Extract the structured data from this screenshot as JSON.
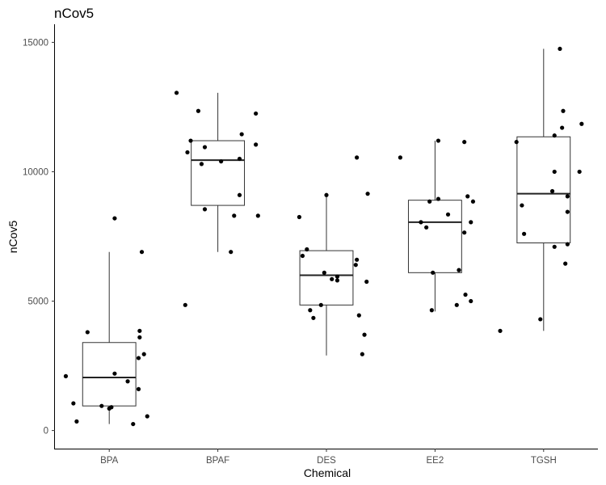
{
  "chart_data": {
    "type": "boxplot",
    "title": "nCov5",
    "xlabel": "Chemical",
    "ylabel": "nCov5",
    "ylim": [
      -700,
      15700
    ],
    "yticks": [
      0,
      5000,
      10000,
      15000
    ],
    "ytick_labels": [
      "0",
      "5000",
      "10000",
      "15000"
    ],
    "grid": false,
    "categories": [
      "BPA",
      "BPAF",
      "DES",
      "EE2",
      "TGSH"
    ],
    "boxes": [
      {
        "category": "BPA",
        "whisker_low": 250,
        "q1": 950,
        "median": 2050,
        "q3": 3400,
        "whisker_high": 6900
      },
      {
        "category": "BPAF",
        "whisker_low": 6900,
        "q1": 8700,
        "median": 10450,
        "q3": 11200,
        "whisker_high": 13050
      },
      {
        "category": "DES",
        "whisker_low": 2900,
        "q1": 4850,
        "median": 6000,
        "q3": 6950,
        "whisker_high": 9100
      },
      {
        "category": "EE2",
        "whisker_low": 4600,
        "q1": 6100,
        "median": 8050,
        "q3": 8900,
        "whisker_high": 11200
      },
      {
        "category": "TGSH",
        "whisker_low": 3850,
        "q1": 7250,
        "median": 9150,
        "q3": 11350,
        "whisker_high": 14750
      }
    ],
    "points": [
      {
        "category": "BPA",
        "jitter": 0.05,
        "value": 8200
      },
      {
        "category": "BPA",
        "jitter": 0.3,
        "value": 6900
      },
      {
        "category": "BPA",
        "jitter": -0.2,
        "value": 3800
      },
      {
        "category": "BPA",
        "jitter": 0.28,
        "value": 3850
      },
      {
        "category": "BPA",
        "jitter": 0.28,
        "value": 3600
      },
      {
        "category": "BPA",
        "jitter": 0.32,
        "value": 2950
      },
      {
        "category": "BPA",
        "jitter": 0.27,
        "value": 2800
      },
      {
        "category": "BPA",
        "jitter": -0.4,
        "value": 2100
      },
      {
        "category": "BPA",
        "jitter": 0.05,
        "value": 2200
      },
      {
        "category": "BPA",
        "jitter": 0.17,
        "value": 1900
      },
      {
        "category": "BPA",
        "jitter": 0.27,
        "value": 1600
      },
      {
        "category": "BPA",
        "jitter": -0.33,
        "value": 1050
      },
      {
        "category": "BPA",
        "jitter": -0.07,
        "value": 950
      },
      {
        "category": "BPA",
        "jitter": 0.02,
        "value": 900
      },
      {
        "category": "BPA",
        "jitter": 0.0,
        "value": 850
      },
      {
        "category": "BPA",
        "jitter": 0.35,
        "value": 550
      },
      {
        "category": "BPA",
        "jitter": -0.3,
        "value": 350
      },
      {
        "category": "BPA",
        "jitter": 0.22,
        "value": 250
      },
      {
        "category": "BPAF",
        "jitter": -0.38,
        "value": 13050
      },
      {
        "category": "BPAF",
        "jitter": -0.18,
        "value": 12350
      },
      {
        "category": "BPAF",
        "jitter": 0.35,
        "value": 12250
      },
      {
        "category": "BPAF",
        "jitter": 0.22,
        "value": 11450
      },
      {
        "category": "BPAF",
        "jitter": -0.25,
        "value": 11200
      },
      {
        "category": "BPAF",
        "jitter": 0.35,
        "value": 11050
      },
      {
        "category": "BPAF",
        "jitter": -0.12,
        "value": 10950
      },
      {
        "category": "BPAF",
        "jitter": -0.28,
        "value": 10750
      },
      {
        "category": "BPAF",
        "jitter": 0.2,
        "value": 10500
      },
      {
        "category": "BPAF",
        "jitter": 0.03,
        "value": 10400
      },
      {
        "category": "BPAF",
        "jitter": -0.15,
        "value": 10300
      },
      {
        "category": "BPAF",
        "jitter": 0.2,
        "value": 9100
      },
      {
        "category": "BPAF",
        "jitter": -0.12,
        "value": 8550
      },
      {
        "category": "BPAF",
        "jitter": 0.15,
        "value": 8300
      },
      {
        "category": "BPAF",
        "jitter": 0.37,
        "value": 8300
      },
      {
        "category": "BPAF",
        "jitter": 0.12,
        "value": 6900
      },
      {
        "category": "BPAF",
        "jitter": -0.3,
        "value": 4850
      },
      {
        "category": "DES",
        "jitter": 0.28,
        "value": 10550
      },
      {
        "category": "DES",
        "jitter": 0.38,
        "value": 9150
      },
      {
        "category": "DES",
        "jitter": 0.0,
        "value": 9100
      },
      {
        "category": "DES",
        "jitter": -0.25,
        "value": 8250
      },
      {
        "category": "DES",
        "jitter": -0.18,
        "value": 7000
      },
      {
        "category": "DES",
        "jitter": -0.22,
        "value": 6750
      },
      {
        "category": "DES",
        "jitter": 0.28,
        "value": 6600
      },
      {
        "category": "DES",
        "jitter": 0.27,
        "value": 6400
      },
      {
        "category": "DES",
        "jitter": -0.02,
        "value": 6100
      },
      {
        "category": "DES",
        "jitter": 0.1,
        "value": 5950
      },
      {
        "category": "DES",
        "jitter": 0.05,
        "value": 5850
      },
      {
        "category": "DES",
        "jitter": 0.1,
        "value": 5800
      },
      {
        "category": "DES",
        "jitter": 0.37,
        "value": 5750
      },
      {
        "category": "DES",
        "jitter": -0.05,
        "value": 4850
      },
      {
        "category": "DES",
        "jitter": -0.15,
        "value": 4650
      },
      {
        "category": "DES",
        "jitter": 0.3,
        "value": 4450
      },
      {
        "category": "DES",
        "jitter": -0.12,
        "value": 4350
      },
      {
        "category": "DES",
        "jitter": 0.35,
        "value": 3700
      },
      {
        "category": "DES",
        "jitter": 0.33,
        "value": 2950
      },
      {
        "category": "EE2",
        "jitter": -0.32,
        "value": 10550
      },
      {
        "category": "EE2",
        "jitter": 0.03,
        "value": 11200
      },
      {
        "category": "EE2",
        "jitter": 0.27,
        "value": 11150
      },
      {
        "category": "EE2",
        "jitter": 0.3,
        "value": 9050
      },
      {
        "category": "EE2",
        "jitter": 0.03,
        "value": 8950
      },
      {
        "category": "EE2",
        "jitter": -0.05,
        "value": 8850
      },
      {
        "category": "EE2",
        "jitter": 0.35,
        "value": 8850
      },
      {
        "category": "EE2",
        "jitter": 0.12,
        "value": 8350
      },
      {
        "category": "EE2",
        "jitter": -0.13,
        "value": 8050
      },
      {
        "category": "EE2",
        "jitter": 0.33,
        "value": 8050
      },
      {
        "category": "EE2",
        "jitter": -0.08,
        "value": 7850
      },
      {
        "category": "EE2",
        "jitter": 0.27,
        "value": 7650
      },
      {
        "category": "EE2",
        "jitter": 0.22,
        "value": 6200
      },
      {
        "category": "EE2",
        "jitter": -0.02,
        "value": 6100
      },
      {
        "category": "EE2",
        "jitter": 0.28,
        "value": 5250
      },
      {
        "category": "EE2",
        "jitter": 0.33,
        "value": 5000
      },
      {
        "category": "EE2",
        "jitter": 0.2,
        "value": 4850
      },
      {
        "category": "EE2",
        "jitter": -0.03,
        "value": 4650
      },
      {
        "category": "TGSH",
        "jitter": 0.15,
        "value": 14750
      },
      {
        "category": "TGSH",
        "jitter": 0.18,
        "value": 12350
      },
      {
        "category": "TGSH",
        "jitter": 0.35,
        "value": 11850
      },
      {
        "category": "TGSH",
        "jitter": 0.17,
        "value": 11700
      },
      {
        "category": "TGSH",
        "jitter": 0.1,
        "value": 11400
      },
      {
        "category": "TGSH",
        "jitter": -0.25,
        "value": 11150
      },
      {
        "category": "TGSH",
        "jitter": 0.1,
        "value": 10000
      },
      {
        "category": "TGSH",
        "jitter": 0.33,
        "value": 10000
      },
      {
        "category": "TGSH",
        "jitter": 0.08,
        "value": 9250
      },
      {
        "category": "TGSH",
        "jitter": 0.22,
        "value": 9050
      },
      {
        "category": "TGSH",
        "jitter": -0.2,
        "value": 8700
      },
      {
        "category": "TGSH",
        "jitter": 0.22,
        "value": 8450
      },
      {
        "category": "TGSH",
        "jitter": -0.18,
        "value": 7600
      },
      {
        "category": "TGSH",
        "jitter": 0.22,
        "value": 7200
      },
      {
        "category": "TGSH",
        "jitter": 0.1,
        "value": 7100
      },
      {
        "category": "TGSH",
        "jitter": 0.2,
        "value": 6450
      },
      {
        "category": "TGSH",
        "jitter": -0.03,
        "value": 4300
      },
      {
        "category": "TGSH",
        "jitter": -0.4,
        "value": 3850
      }
    ]
  }
}
